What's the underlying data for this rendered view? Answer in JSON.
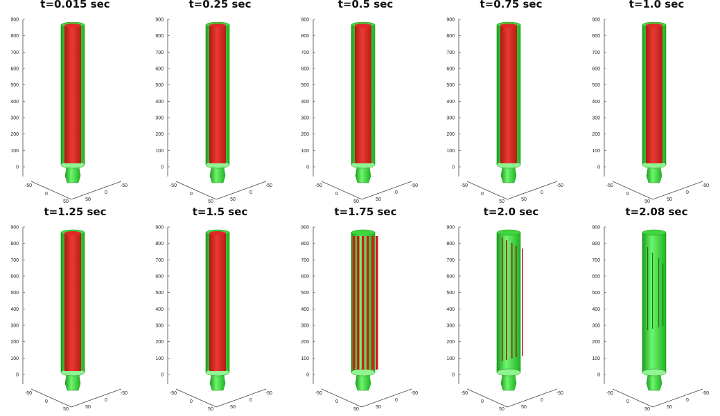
{
  "figure": {
    "colors": {
      "outer_surface": "#2ecc2e",
      "inner_surface": "#d81c1c",
      "axis": "#444444"
    }
  },
  "chart_data": {
    "type": "3d-surface-snapshots",
    "z_ticks": [
      "900",
      "800",
      "700",
      "600",
      "500",
      "400",
      "300",
      "200",
      "100",
      "0"
    ],
    "x_ticks": [
      "-50",
      "0",
      "50"
    ],
    "y_ticks": [
      "50",
      "0",
      "-50"
    ],
    "zlim": [
      0,
      900
    ],
    "panels": [
      {
        "title": "t=0.015 sec",
        "t": 0.015,
        "inner_fill": 1.0,
        "state": "full"
      },
      {
        "title": "t=0.25 sec",
        "t": 0.25,
        "inner_fill": 1.0,
        "state": "full"
      },
      {
        "title": "t=0.5 sec",
        "t": 0.5,
        "inner_fill": 1.0,
        "state": "full"
      },
      {
        "title": "t=0.75 sec",
        "t": 0.75,
        "inner_fill": 1.0,
        "state": "full"
      },
      {
        "title": "t=1.0 sec",
        "t": 1.0,
        "inner_fill": 1.0,
        "state": "full"
      },
      {
        "title": "t=1.25 sec",
        "t": 1.25,
        "inner_fill": 1.0,
        "state": "full"
      },
      {
        "title": "t=1.5 sec",
        "t": 1.5,
        "inner_fill": 1.0,
        "state": "full"
      },
      {
        "title": "t=1.75 sec",
        "t": 1.75,
        "inner_fill": 0.5,
        "state": "strips"
      },
      {
        "title": "t=2.0 sec",
        "t": 2.0,
        "inner_fill": 0.15,
        "state": "thin-strips"
      },
      {
        "title": "t=2.08 sec",
        "t": 2.08,
        "inner_fill": 0.0,
        "state": "empty"
      }
    ]
  }
}
